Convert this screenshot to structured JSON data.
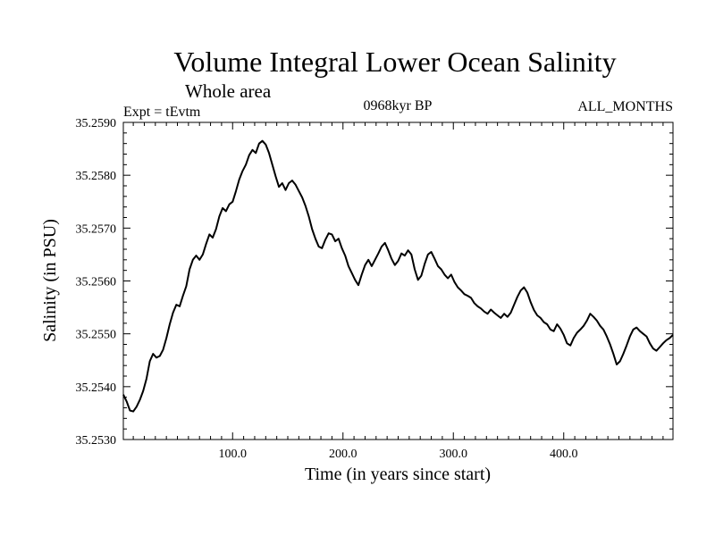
{
  "chart_data": {
    "type": "line",
    "title": "Volume Integral Lower Ocean Salinity",
    "subtitle": "Whole area",
    "left_label": "Expt = tEvtm",
    "center_label": "0968kyr BP",
    "right_label": "ALL_MONTHS",
    "xlabel": "Time (in years since start)",
    "ylabel": "Salinity (in PSU)",
    "xlim": [
      1,
      499
    ],
    "ylim": [
      35.253,
      35.259
    ],
    "xticks": [
      100,
      200,
      300,
      400
    ],
    "xtick_labels": [
      "100.0",
      "200.0",
      "300.0",
      "400.0"
    ],
    "yticks": [
      35.253,
      35.254,
      35.255,
      35.256,
      35.257,
      35.258,
      35.259
    ],
    "ytick_labels": [
      "35.2530",
      "35.2540",
      "35.2550",
      "35.2560",
      "35.2570",
      "35.2580",
      "35.2590"
    ],
    "series": [
      {
        "name": "salinity",
        "color": "#000000",
        "points": [
          [
            1,
            35.25385
          ],
          [
            4,
            35.25372
          ],
          [
            7,
            35.25355
          ],
          [
            10,
            35.25353
          ],
          [
            13,
            35.25362
          ],
          [
            16,
            35.25375
          ],
          [
            19,
            35.25392
          ],
          [
            22,
            35.25415
          ],
          [
            25,
            35.25448
          ],
          [
            28,
            35.25462
          ],
          [
            31,
            35.25455
          ],
          [
            34,
            35.25458
          ],
          [
            37,
            35.2547
          ],
          [
            40,
            35.25492
          ],
          [
            43,
            35.25518
          ],
          [
            46,
            35.2554
          ],
          [
            49,
            35.25555
          ],
          [
            52,
            35.25552
          ],
          [
            55,
            35.25572
          ],
          [
            58,
            35.2559
          ],
          [
            61,
            35.25622
          ],
          [
            64,
            35.2564
          ],
          [
            67,
            35.25648
          ],
          [
            70,
            35.2564
          ],
          [
            73,
            35.2565
          ],
          [
            76,
            35.2567
          ],
          [
            79,
            35.25688
          ],
          [
            82,
            35.25682
          ],
          [
            85,
            35.25698
          ],
          [
            88,
            35.25722
          ],
          [
            91,
            35.25738
          ],
          [
            94,
            35.25732
          ],
          [
            97,
            35.25745
          ],
          [
            100,
            35.2575
          ],
          [
            103,
            35.2577
          ],
          [
            106,
            35.25792
          ],
          [
            109,
            35.25808
          ],
          [
            112,
            35.2582
          ],
          [
            115,
            35.25838
          ],
          [
            118,
            35.25848
          ],
          [
            121,
            35.25842
          ],
          [
            124,
            35.2586
          ],
          [
            127,
            35.25865
          ],
          [
            130,
            35.25858
          ],
          [
            133,
            35.25842
          ],
          [
            136,
            35.2582
          ],
          [
            139,
            35.25798
          ],
          [
            142,
            35.25778
          ],
          [
            145,
            35.25785
          ],
          [
            148,
            35.25772
          ],
          [
            151,
            35.25785
          ],
          [
            154,
            35.2579
          ],
          [
            157,
            35.25782
          ],
          [
            160,
            35.2577
          ],
          [
            163,
            35.25758
          ],
          [
            166,
            35.25742
          ],
          [
            169,
            35.25722
          ],
          [
            172,
            35.25698
          ],
          [
            175,
            35.2568
          ],
          [
            178,
            35.25665
          ],
          [
            181,
            35.25662
          ],
          [
            184,
            35.25678
          ],
          [
            187,
            35.2569
          ],
          [
            190,
            35.25688
          ],
          [
            193,
            35.25675
          ],
          [
            196,
            35.2568
          ],
          [
            199,
            35.25662
          ],
          [
            202,
            35.25648
          ],
          [
            205,
            35.25628
          ],
          [
            208,
            35.25615
          ],
          [
            211,
            35.25602
          ],
          [
            214,
            35.25592
          ],
          [
            217,
            35.25612
          ],
          [
            220,
            35.2563
          ],
          [
            223,
            35.2564
          ],
          [
            226,
            35.25628
          ],
          [
            229,
            35.2564
          ],
          [
            232,
            35.25652
          ],
          [
            235,
            35.25665
          ],
          [
            238,
            35.25672
          ],
          [
            241,
            35.25658
          ],
          [
            244,
            35.25642
          ],
          [
            247,
            35.2563
          ],
          [
            250,
            35.25638
          ],
          [
            253,
            35.25652
          ],
          [
            256,
            35.25648
          ],
          [
            259,
            35.25658
          ],
          [
            262,
            35.2565
          ],
          [
            265,
            35.25622
          ],
          [
            268,
            35.25602
          ],
          [
            271,
            35.2561
          ],
          [
            274,
            35.25632
          ],
          [
            277,
            35.2565
          ],
          [
            280,
            35.25655
          ],
          [
            283,
            35.25642
          ],
          [
            286,
            35.25628
          ],
          [
            289,
            35.25622
          ],
          [
            292,
            35.25612
          ],
          [
            295,
            35.25605
          ],
          [
            298,
            35.25612
          ],
          [
            301,
            35.25598
          ],
          [
            304,
            35.25588
          ],
          [
            307,
            35.25582
          ],
          [
            310,
            35.25575
          ],
          [
            313,
            35.25572
          ],
          [
            316,
            35.25568
          ],
          [
            319,
            35.25558
          ],
          [
            322,
            35.25552
          ],
          [
            325,
            35.25548
          ],
          [
            328,
            35.25542
          ],
          [
            331,
            35.25538
          ],
          [
            334,
            35.25546
          ],
          [
            337,
            35.2554
          ],
          [
            340,
            35.25535
          ],
          [
            343,
            35.2553
          ],
          [
            346,
            35.25538
          ],
          [
            349,
            35.25532
          ],
          [
            352,
            35.2554
          ],
          [
            355,
            35.25555
          ],
          [
            358,
            35.2557
          ],
          [
            361,
            35.25582
          ],
          [
            364,
            35.25588
          ],
          [
            367,
            35.25578
          ],
          [
            370,
            35.2556
          ],
          [
            373,
            35.25545
          ],
          [
            376,
            35.25535
          ],
          [
            379,
            35.2553
          ],
          [
            382,
            35.25522
          ],
          [
            385,
            35.25518
          ],
          [
            388,
            35.25508
          ],
          [
            391,
            35.25505
          ],
          [
            394,
            35.25518
          ],
          [
            397,
            35.2551
          ],
          [
            400,
            35.25498
          ],
          [
            403,
            35.25482
          ],
          [
            406,
            35.25478
          ],
          [
            409,
            35.25492
          ],
          [
            412,
            35.25502
          ],
          [
            415,
            35.25508
          ],
          [
            418,
            35.25515
          ],
          [
            421,
            35.25525
          ],
          [
            424,
            35.25538
          ],
          [
            427,
            35.25532
          ],
          [
            430,
            35.25525
          ],
          [
            433,
            35.25515
          ],
          [
            436,
            35.25508
          ],
          [
            439,
            35.25495
          ],
          [
            442,
            35.2548
          ],
          [
            445,
            35.25462
          ],
          [
            448,
            35.25442
          ],
          [
            451,
            35.25448
          ],
          [
            454,
            35.25462
          ],
          [
            457,
            35.25478
          ],
          [
            460,
            35.25495
          ],
          [
            463,
            35.25508
          ],
          [
            466,
            35.25512
          ],
          [
            469,
            35.25505
          ],
          [
            472,
            35.255
          ],
          [
            475,
            35.25495
          ],
          [
            478,
            35.25482
          ],
          [
            481,
            35.25472
          ],
          [
            484,
            35.25468
          ],
          [
            487,
            35.25475
          ],
          [
            490,
            35.25482
          ],
          [
            493,
            35.25488
          ],
          [
            496,
            35.25492
          ],
          [
            499,
            35.25498
          ]
        ]
      }
    ]
  }
}
